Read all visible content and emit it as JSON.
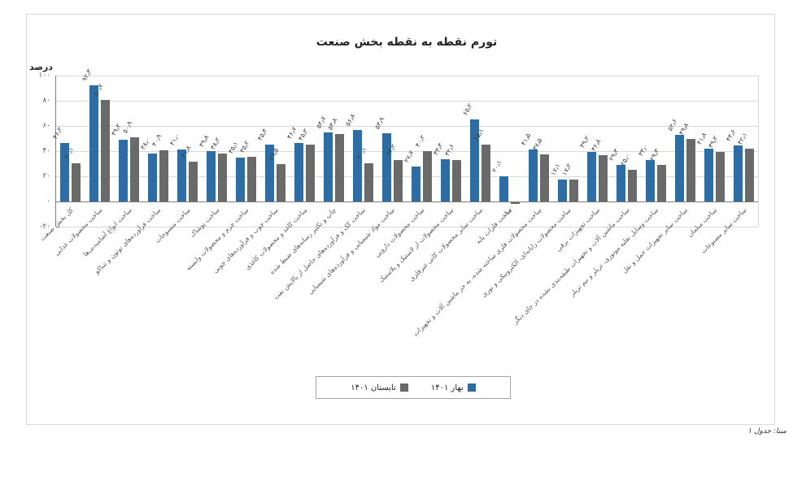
{
  "header": {
    "title": "تورم نقطه به نقطه بخش صنعت",
    "y_axis_unit_label": "درصد"
  },
  "footer": {
    "source_note": "مبنا: جدول ۱"
  },
  "legend": {
    "items": [
      {
        "label": "بهار ۱۴۰۱",
        "color": "#2E6DA4"
      },
      {
        "label": "تابستان ۱۴۰۱",
        "color": "#6A6A6A"
      }
    ]
  },
  "colors": {
    "series_spring": "#2E6DA4",
    "series_summer": "#6A6A6A",
    "gridline": "#d9d9d9",
    "axis": "#7f7f7f"
  },
  "chart_data": {
    "type": "bar",
    "title": "تورم نقطه به نقطه بخش صنعت",
    "xlabel": "",
    "ylabel": "درصد",
    "ylim": [
      -20,
      100
    ],
    "grid": true,
    "legend_position": "bottom",
    "yticks": [
      {
        "value": 100,
        "label": "۱۰۰"
      },
      {
        "value": 80,
        "label": "۸۰"
      },
      {
        "value": 60,
        "label": "۶۰"
      },
      {
        "value": 40,
        "label": "۴۰"
      },
      {
        "value": 20,
        "label": "۲۰"
      },
      {
        "value": 0,
        "label": "۰"
      },
      {
        "value": -20,
        "label": "-۲۰"
      }
    ],
    "categories": [
      "کل بخش صنعت",
      "ساخت محصولات غذایی",
      "ساخت انواع آشامیدنی‌ها",
      "ساخت فرآورده‌های توتون و تنباکو",
      "ساخت منسوجات",
      "ساخت پوشاک",
      "ساخت چرم و محصولات وابسته",
      "ساخت چوب و فرآورده‌های چوبی",
      "ساخت کاغذ و محصولات کاغذی",
      "چاپ و تکثیر رسانه‌های ضبط شده",
      "ساخت کک و فرآورده‌های حاصل از پالایش نفت",
      "ساخت مواد شیمیایی و فرآورده‌های شیمیایی",
      "ساخت محصولات دارویی",
      "ساخت محصولات از لاستیک و پلاستیک",
      "ساخت سایر محصولات کانی غیرفلزی",
      "ساخت فلزات پایه",
      "ساخت محصولات فلزی ساخته شده، به جز ماشین آلات و تجهیزات",
      "ساخت محصولات رایانه‌ای، الکترونیکی و نوری",
      "ساخت تجهیزات برقی",
      "ساخت ماشین آلات و تجهیزات طبقه‌بندی نشده در جای دیگر",
      "ساخت وسایل نقلیه موتوری، تریلر و نیم تریلر",
      "ساخت سایر تجهیزات حمل و نقل",
      "ساخت مبلمان",
      "ساخت سایر مصنوعات"
    ],
    "series": [
      {
        "name": "بهار ۱۴۰۱",
        "color": "#2E6DA4",
        "values": [
          46.2,
          92.3,
          49.2,
          38.0,
          41.0,
          39.8,
          35.1,
          45.4,
          46.7,
          54.7,
          56.8,
          53.9,
          27.7,
          33.3,
          65.2,
          20.1,
          41.5,
          17.1,
          39.2,
          29.3,
          33.0,
          52.6,
          41.8,
          44.6
        ]
      },
      {
        "name": "تابستان ۱۴۰۱",
        "color": "#6A6A6A",
        "values": [
          30.1,
          80.7,
          50.9,
          40.9,
          31.8,
          38.2,
          35.2,
          29.5,
          45.2,
          53.8,
          30.1,
          33.2,
          40.2,
          32.6,
          45.1,
          -1.0,
          37.5,
          17.2,
          36.8,
          25.0,
          29.3,
          49.8,
          39.2,
          42.1
        ]
      }
    ]
  }
}
